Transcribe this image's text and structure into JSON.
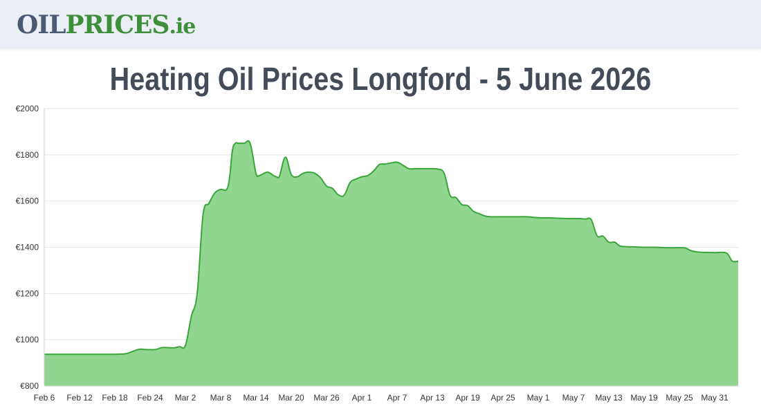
{
  "header": {
    "logo_oil": "OIL",
    "logo_prices": "PRICES",
    "logo_tld": ".ie"
  },
  "page_title": "Heating Oil Prices Longford - 5 June 2026",
  "colors": {
    "line": "#3aa63a",
    "fill": "#90d590",
    "grid": "#e6e6e6",
    "header_bg": "#eceef5"
  },
  "chart_data": {
    "type": "area",
    "title": "",
    "xlabel": "",
    "ylabel": "",
    "ylim": [
      800,
      2000
    ],
    "y_ticks": [
      "€800",
      "€1000",
      "€1200",
      "€1400",
      "€1600",
      "€1800",
      "€2000"
    ],
    "y_tick_values": [
      800,
      1000,
      1200,
      1400,
      1600,
      1800,
      2000
    ],
    "x_ticks": [
      "Feb 6",
      "Feb 12",
      "Feb 18",
      "Feb 24",
      "Mar 2",
      "Mar 8",
      "Mar 14",
      "Mar 20",
      "Mar 26",
      "Apr 1",
      "Apr 7",
      "Apr 13",
      "Apr 19",
      "Apr 25",
      "May 1",
      "May 7",
      "May 13",
      "May 19",
      "May 25",
      "May 31"
    ],
    "x_tick_days": [
      0,
      6,
      12,
      18,
      24,
      30,
      36,
      42,
      48,
      54,
      60,
      66,
      72,
      78,
      84,
      90,
      96,
      102,
      108,
      114
    ],
    "x_days_max": 118,
    "grid": true,
    "legend": "none",
    "series": [
      {
        "days": [
          0,
          5,
          10,
          12,
          13,
          14,
          16,
          17,
          18,
          19,
          20,
          21,
          22,
          23,
          24,
          25,
          26,
          27,
          28,
          29,
          30,
          31,
          31.5,
          32,
          32.5,
          33,
          34,
          35,
          36,
          36.5,
          37,
          38,
          39,
          39.5,
          40,
          41,
          42,
          43,
          44,
          45,
          46,
          47,
          48,
          49,
          50,
          51,
          52,
          53,
          54,
          55,
          56,
          57,
          58,
          59,
          60,
          61,
          62,
          63,
          64,
          65,
          66,
          67,
          68,
          69,
          70,
          71,
          72,
          73,
          74,
          75,
          76,
          78,
          80,
          82,
          84,
          86,
          88,
          90,
          91,
          92,
          93,
          94,
          95,
          96,
          97,
          98,
          100,
          102,
          104,
          106,
          108,
          109,
          110,
          111,
          112,
          114,
          116,
          117,
          118
        ],
        "values": [
          937,
          937,
          937,
          937,
          938,
          940,
          958,
          958,
          957,
          958,
          966,
          966,
          965,
          970,
          975,
          1100,
          1200,
          1540,
          1590,
          1635,
          1650,
          1650,
          1700,
          1820,
          1850,
          1850,
          1850,
          1850,
          1720,
          1710,
          1715,
          1725,
          1710,
          1705,
          1708,
          1790,
          1715,
          1705,
          1720,
          1725,
          1720,
          1700,
          1665,
          1655,
          1627,
          1625,
          1680,
          1695,
          1705,
          1710,
          1730,
          1758,
          1760,
          1765,
          1768,
          1755,
          1740,
          1740,
          1740,
          1740,
          1740,
          1738,
          1720,
          1625,
          1615,
          1585,
          1580,
          1555,
          1545,
          1535,
          1532,
          1532,
          1532,
          1532,
          1528,
          1527,
          1525,
          1524,
          1524,
          1522,
          1520,
          1450,
          1448,
          1422,
          1422,
          1405,
          1402,
          1400,
          1400,
          1398,
          1398,
          1397,
          1385,
          1380,
          1378,
          1377,
          1375,
          1340,
          1340
        ]
      }
    ]
  }
}
